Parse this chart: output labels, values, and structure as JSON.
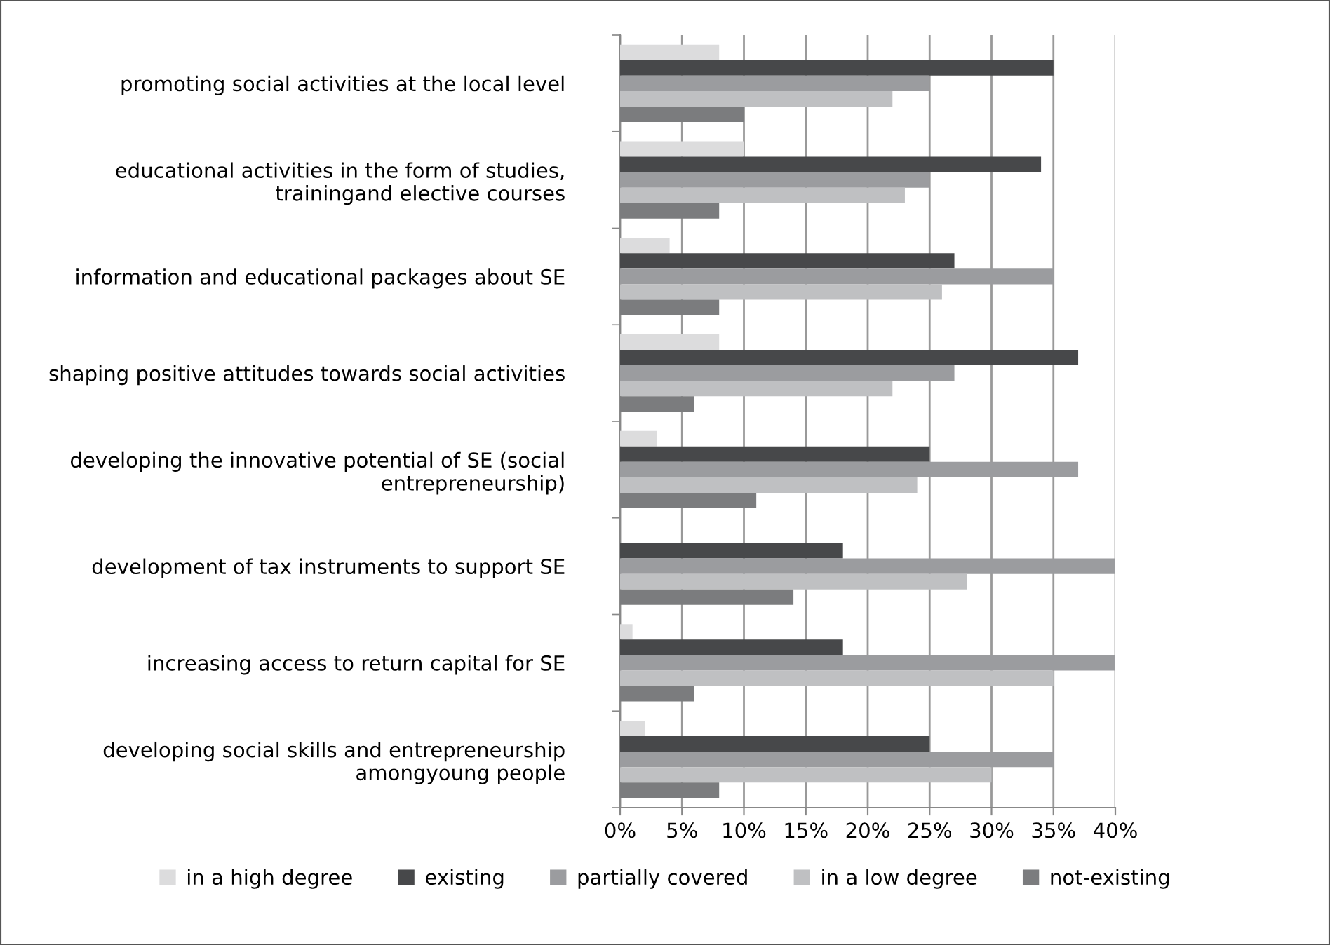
{
  "chart_data": {
    "type": "bar",
    "orientation": "horizontal",
    "categories": [
      "promoting social activities at the local level",
      "educational activities in the form of studies,\ntrainingand elective courses",
      "information and educational packages about SE",
      "shaping positive attitudes towards social activities",
      "developing the innovative potential of SE (social\nentrepreneurship)",
      "development of tax instruments to support SE",
      "increasing access to return capital for SE",
      "developing social skills and entrepreneurship\namongyoung people"
    ],
    "series": [
      {
        "name": "in a high degree",
        "color": "#dcdcdd",
        "values": [
          8,
          10,
          4,
          8,
          3,
          0,
          1,
          2
        ]
      },
      {
        "name": "existing",
        "color": "#47484a",
        "values": [
          35,
          34,
          27,
          37,
          25,
          18,
          18,
          25
        ]
      },
      {
        "name": "partially covered",
        "color": "#9b9c9f",
        "values": [
          25,
          25,
          35,
          27,
          37,
          40,
          40,
          35
        ]
      },
      {
        "name": "in a low degree",
        "color": "#bfc0c2",
        "values": [
          22,
          23,
          26,
          22,
          24,
          28,
          35,
          30
        ]
      },
      {
        "name": "not-existing",
        "color": "#7b7c7e",
        "values": [
          10,
          8,
          8,
          6,
          11,
          14,
          6,
          8
        ]
      }
    ],
    "xlim": [
      0,
      40
    ],
    "xticks": [
      {
        "value": 0,
        "label": "0%"
      },
      {
        "value": 5,
        "label": "5%"
      },
      {
        "value": 10,
        "label": "10%"
      },
      {
        "value": 15,
        "label": "15%"
      },
      {
        "value": 20,
        "label": "20%"
      },
      {
        "value": 25,
        "label": "25%"
      },
      {
        "value": 30,
        "label": "30%"
      },
      {
        "value": 35,
        "label": "35%"
      },
      {
        "value": 40,
        "label": "40%"
      }
    ],
    "grid": "x",
    "legend": "bottom"
  }
}
